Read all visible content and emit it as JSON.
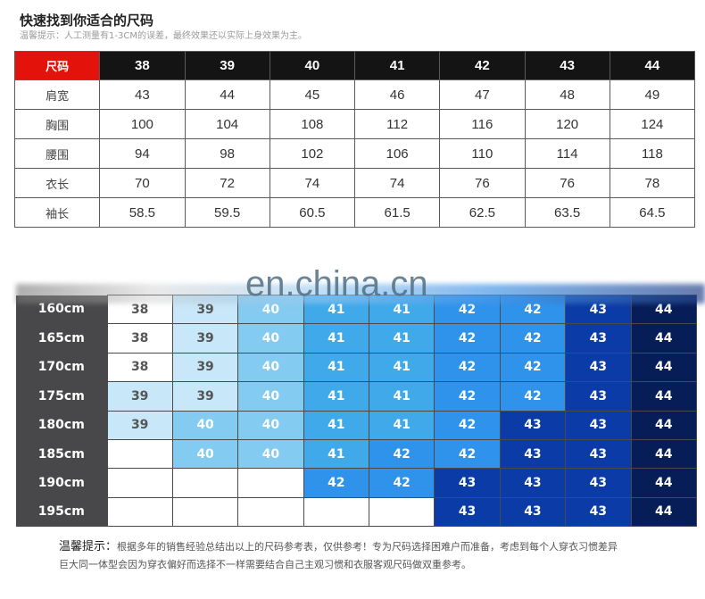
{
  "header": {
    "title": "快速找到你适合的尺码",
    "subtitle": "温馨提示：人工测量有1-3CM的误差，最终效果还以实际上身效果为主。"
  },
  "measurements_table": {
    "corner_label": "尺码",
    "sizes": [
      "38",
      "39",
      "40",
      "41",
      "42",
      "43",
      "44"
    ],
    "rows": [
      {
        "label": "肩宽",
        "values": [
          "43",
          "44",
          "45",
          "46",
          "47",
          "48",
          "49"
        ]
      },
      {
        "label": "胸围",
        "values": [
          "100",
          "104",
          "108",
          "112",
          "116",
          "120",
          "124"
        ]
      },
      {
        "label": "腰围",
        "values": [
          "94",
          "98",
          "102",
          "106",
          "110",
          "114",
          "118"
        ]
      },
      {
        "label": "衣长",
        "values": [
          "70",
          "72",
          "74",
          "74",
          "76",
          "76",
          "78"
        ]
      },
      {
        "label": "袖长",
        "values": [
          "58.5",
          "59.5",
          "60.5",
          "61.5",
          "62.5",
          "63.5",
          "64.5"
        ]
      }
    ]
  },
  "height_table": {
    "rows": [
      {
        "label": "160cm",
        "values": [
          "38",
          "39",
          "40",
          "41",
          "41",
          "42",
          "42",
          "43",
          "44"
        ]
      },
      {
        "label": "165cm",
        "values": [
          "38",
          "39",
          "40",
          "41",
          "41",
          "42",
          "42",
          "43",
          "44"
        ]
      },
      {
        "label": "170cm",
        "values": [
          "38",
          "39",
          "40",
          "41",
          "41",
          "42",
          "42",
          "43",
          "44"
        ]
      },
      {
        "label": "175cm",
        "values": [
          "39",
          "39",
          "40",
          "41",
          "41",
          "42",
          "42",
          "43",
          "44"
        ]
      },
      {
        "label": "180cm",
        "values": [
          "39",
          "40",
          "40",
          "41",
          "41",
          "42",
          "43",
          "43",
          "44"
        ]
      },
      {
        "label": "185cm",
        "values": [
          "",
          "40",
          "40",
          "41",
          "42",
          "42",
          "43",
          "43",
          "44"
        ]
      },
      {
        "label": "190cm",
        "values": [
          "",
          "",
          "",
          "42",
          "42",
          "43",
          "43",
          "43",
          "44"
        ]
      },
      {
        "label": "195cm",
        "values": [
          "",
          "",
          "",
          "",
          "",
          "43",
          "43",
          "43",
          "44"
        ]
      }
    ],
    "size_colors": {
      "empty": "#ffffff",
      "38": "#ffffff",
      "39": "#c8e7f9",
      "40": "#84cbf1",
      "41": "#3fa9ea",
      "42": "#2f93ec",
      "43": "#0b3ba6",
      "44": "#061d58"
    }
  },
  "watermark": "en.china.cn",
  "footer": {
    "lead": "温馨提示：",
    "line1": "根据多年的销售经验总结出以上的尺码参考表，仅供参考！专为尺码选择困难户而准备，考虑到每个人穿衣习惯差异",
    "line2": "巨大同一体型会因为穿衣偏好而选择不一样需要结合自己主观习惯和衣服客观尺码做双重参考。"
  }
}
